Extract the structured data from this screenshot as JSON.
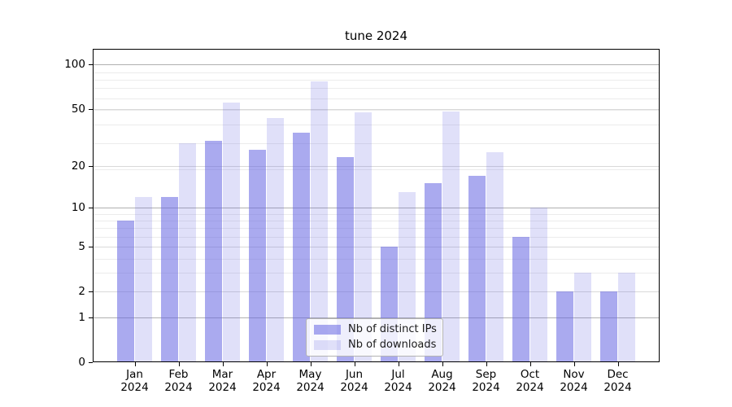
{
  "chart_data": {
    "type": "bar",
    "title": "tune 2024",
    "y_scale": "log1p",
    "ylim": [
      0,
      128
    ],
    "y_ticks": [
      0,
      1,
      2,
      5,
      10,
      20,
      50,
      100
    ],
    "y_minor_gridlines": [
      3,
      4,
      6,
      7,
      8,
      9,
      19,
      29,
      39,
      49,
      59,
      69,
      79,
      89
    ],
    "grid": true,
    "categories": [
      "Jan 2024",
      "Feb 2024",
      "Mar 2024",
      "Apr 2024",
      "May 2024",
      "Jun 2024",
      "Jul 2024",
      "Aug 2024",
      "Sep 2024",
      "Oct 2024",
      "Nov 2024",
      "Dec 2024"
    ],
    "series": [
      {
        "name": "Nb of distinct IPs",
        "color": "rgba(100,100,225,0.55)",
        "values": [
          8,
          12,
          30,
          26,
          34,
          23,
          5,
          15,
          17,
          6,
          2,
          2
        ]
      },
      {
        "name": "Nb of downloads",
        "color": "rgba(100,100,225,0.20)",
        "values": [
          12,
          29,
          55,
          43,
          77,
          47,
          13,
          48,
          25,
          10,
          3,
          3
        ]
      }
    ],
    "legend_position": "lower center",
    "axis_color": "#000000",
    "grid_color_major": "#b0b0b0",
    "grid_color_minor": "#ececec"
  }
}
